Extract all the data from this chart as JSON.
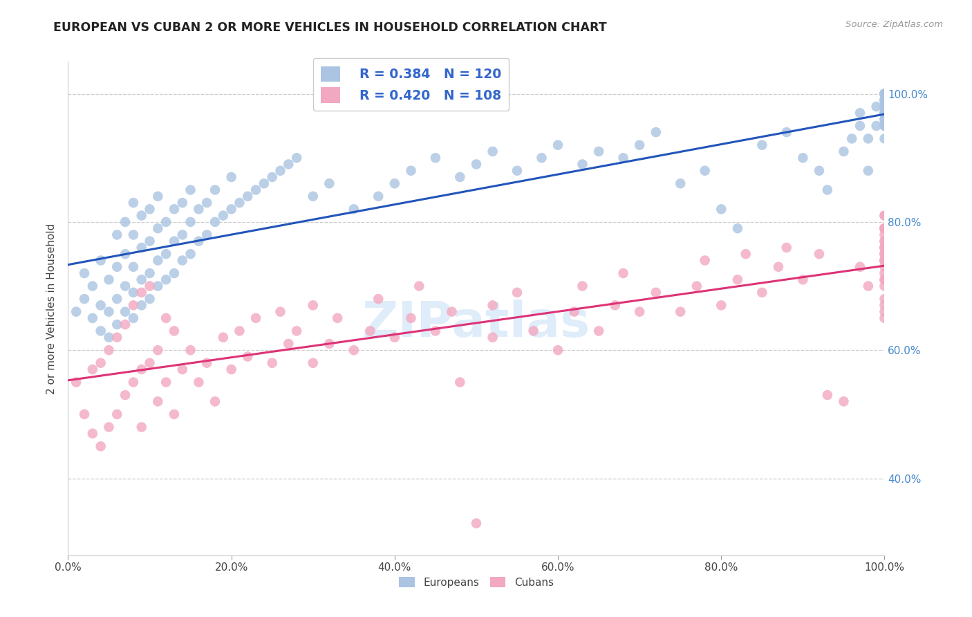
{
  "title": "EUROPEAN VS CUBAN 2 OR MORE VEHICLES IN HOUSEHOLD CORRELATION CHART",
  "source": "Source: ZipAtlas.com",
  "ylabel": "2 or more Vehicles in Household",
  "xlim": [
    0,
    1
  ],
  "ylim": [
    0.28,
    1.05
  ],
  "xticks": [
    0,
    0.2,
    0.4,
    0.6,
    0.8,
    1.0
  ],
  "xticklabels": [
    "0.0%",
    "20.0%",
    "40.0%",
    "60.0%",
    "80.0%",
    "100.0%"
  ],
  "right_yticks": [
    0.4,
    0.6,
    0.8,
    1.0
  ],
  "right_yticklabels": [
    "40.0%",
    "60.0%",
    "80.0%",
    "100.0%"
  ],
  "european_R": "0.384",
  "european_N": "120",
  "cuban_R": "0.420",
  "cuban_N": "108",
  "european_color": "#aac4e2",
  "cuban_color": "#f2a8c0",
  "european_line_color": "#2255bb",
  "cuban_line_color": "#dd3377",
  "legend_label_european": "Europeans",
  "legend_label_cuban": "Cubans",
  "grid_color": "#cccccc",
  "grid_yticks": [
    0.4,
    0.6,
    0.8,
    1.0
  ],
  "european_x": [
    0.01,
    0.02,
    0.02,
    0.03,
    0.03,
    0.04,
    0.04,
    0.04,
    0.05,
    0.05,
    0.05,
    0.06,
    0.06,
    0.06,
    0.06,
    0.07,
    0.07,
    0.07,
    0.07,
    0.08,
    0.08,
    0.08,
    0.08,
    0.08,
    0.09,
    0.09,
    0.09,
    0.09,
    0.1,
    0.1,
    0.1,
    0.1,
    0.11,
    0.11,
    0.11,
    0.11,
    0.12,
    0.12,
    0.12,
    0.13,
    0.13,
    0.13,
    0.14,
    0.14,
    0.14,
    0.15,
    0.15,
    0.15,
    0.16,
    0.16,
    0.17,
    0.17,
    0.18,
    0.18,
    0.19,
    0.2,
    0.2,
    0.21,
    0.22,
    0.23,
    0.24,
    0.25,
    0.26,
    0.27,
    0.28,
    0.3,
    0.32,
    0.35,
    0.38,
    0.4,
    0.42,
    0.45,
    0.48,
    0.5,
    0.52,
    0.55,
    0.58,
    0.6,
    0.63,
    0.65,
    0.68,
    0.7,
    0.72,
    0.75,
    0.78,
    0.8,
    0.82,
    0.85,
    0.88,
    0.9,
    0.92,
    0.93,
    0.95,
    0.96,
    0.97,
    0.97,
    0.98,
    0.98,
    0.99,
    0.99,
    1.0,
    1.0,
    1.0,
    1.0,
    1.0,
    1.0,
    1.0,
    1.0,
    1.0,
    1.0,
    1.0,
    1.0,
    1.0,
    1.0,
    1.0,
    1.0,
    1.0,
    1.0,
    1.0,
    1.0
  ],
  "european_y": [
    0.66,
    0.68,
    0.72,
    0.65,
    0.7,
    0.63,
    0.67,
    0.74,
    0.62,
    0.66,
    0.71,
    0.64,
    0.68,
    0.73,
    0.78,
    0.66,
    0.7,
    0.75,
    0.8,
    0.65,
    0.69,
    0.73,
    0.78,
    0.83,
    0.67,
    0.71,
    0.76,
    0.81,
    0.68,
    0.72,
    0.77,
    0.82,
    0.7,
    0.74,
    0.79,
    0.84,
    0.71,
    0.75,
    0.8,
    0.72,
    0.77,
    0.82,
    0.74,
    0.78,
    0.83,
    0.75,
    0.8,
    0.85,
    0.77,
    0.82,
    0.78,
    0.83,
    0.8,
    0.85,
    0.81,
    0.82,
    0.87,
    0.83,
    0.84,
    0.85,
    0.86,
    0.87,
    0.88,
    0.89,
    0.9,
    0.84,
    0.86,
    0.82,
    0.84,
    0.86,
    0.88,
    0.9,
    0.87,
    0.89,
    0.91,
    0.88,
    0.9,
    0.92,
    0.89,
    0.91,
    0.9,
    0.92,
    0.94,
    0.86,
    0.88,
    0.82,
    0.79,
    0.92,
    0.94,
    0.9,
    0.88,
    0.85,
    0.91,
    0.93,
    0.95,
    0.97,
    0.93,
    0.88,
    0.98,
    0.95,
    0.96,
    0.98,
    1.0,
    0.97,
    0.95,
    0.93,
    0.99,
    0.97,
    1.0,
    0.98,
    0.96,
    0.99,
    1.0,
    0.97,
    0.95,
    0.99,
    1.0,
    0.98,
    0.99,
    1.0
  ],
  "cuban_x": [
    0.01,
    0.02,
    0.03,
    0.03,
    0.04,
    0.04,
    0.05,
    0.05,
    0.06,
    0.06,
    0.07,
    0.07,
    0.08,
    0.08,
    0.09,
    0.09,
    0.09,
    0.1,
    0.1,
    0.11,
    0.11,
    0.12,
    0.12,
    0.13,
    0.13,
    0.14,
    0.15,
    0.16,
    0.17,
    0.18,
    0.19,
    0.2,
    0.21,
    0.22,
    0.23,
    0.25,
    0.26,
    0.27,
    0.28,
    0.3,
    0.3,
    0.32,
    0.33,
    0.35,
    0.37,
    0.38,
    0.4,
    0.42,
    0.43,
    0.45,
    0.47,
    0.48,
    0.5,
    0.52,
    0.52,
    0.55,
    0.57,
    0.6,
    0.62,
    0.63,
    0.65,
    0.67,
    0.68,
    0.7,
    0.72,
    0.75,
    0.77,
    0.78,
    0.8,
    0.82,
    0.83,
    0.85,
    0.87,
    0.88,
    0.9,
    0.92,
    0.93,
    0.95,
    0.97,
    0.98,
    1.0,
    1.0,
    1.0,
    1.0,
    1.0,
    1.0,
    1.0,
    1.0,
    1.0,
    1.0,
    1.0,
    1.0,
    1.0,
    1.0,
    1.0,
    1.0,
    1.0,
    1.0,
    1.0,
    1.0,
    1.0,
    1.0,
    1.0,
    1.0,
    1.0,
    1.0,
    1.0,
    1.0
  ],
  "cuban_y": [
    0.55,
    0.5,
    0.47,
    0.57,
    0.45,
    0.58,
    0.48,
    0.6,
    0.5,
    0.62,
    0.53,
    0.64,
    0.55,
    0.67,
    0.57,
    0.69,
    0.48,
    0.58,
    0.7,
    0.6,
    0.52,
    0.55,
    0.65,
    0.5,
    0.63,
    0.57,
    0.6,
    0.55,
    0.58,
    0.52,
    0.62,
    0.57,
    0.63,
    0.59,
    0.65,
    0.58,
    0.66,
    0.61,
    0.63,
    0.67,
    0.58,
    0.61,
    0.65,
    0.6,
    0.63,
    0.68,
    0.62,
    0.65,
    0.7,
    0.63,
    0.66,
    0.55,
    0.33,
    0.62,
    0.67,
    0.69,
    0.63,
    0.6,
    0.66,
    0.7,
    0.63,
    0.67,
    0.72,
    0.66,
    0.69,
    0.66,
    0.7,
    0.74,
    0.67,
    0.71,
    0.75,
    0.69,
    0.73,
    0.76,
    0.71,
    0.75,
    0.53,
    0.52,
    0.73,
    0.7,
    0.72,
    0.75,
    0.68,
    0.65,
    0.73,
    0.78,
    0.7,
    0.74,
    0.66,
    0.76,
    0.71,
    0.74,
    0.79,
    0.67,
    0.71,
    0.75,
    0.79,
    0.76,
    0.81,
    0.74,
    0.77,
    0.79,
    0.76,
    0.81,
    0.74,
    0.77,
    0.79,
    0.76
  ]
}
